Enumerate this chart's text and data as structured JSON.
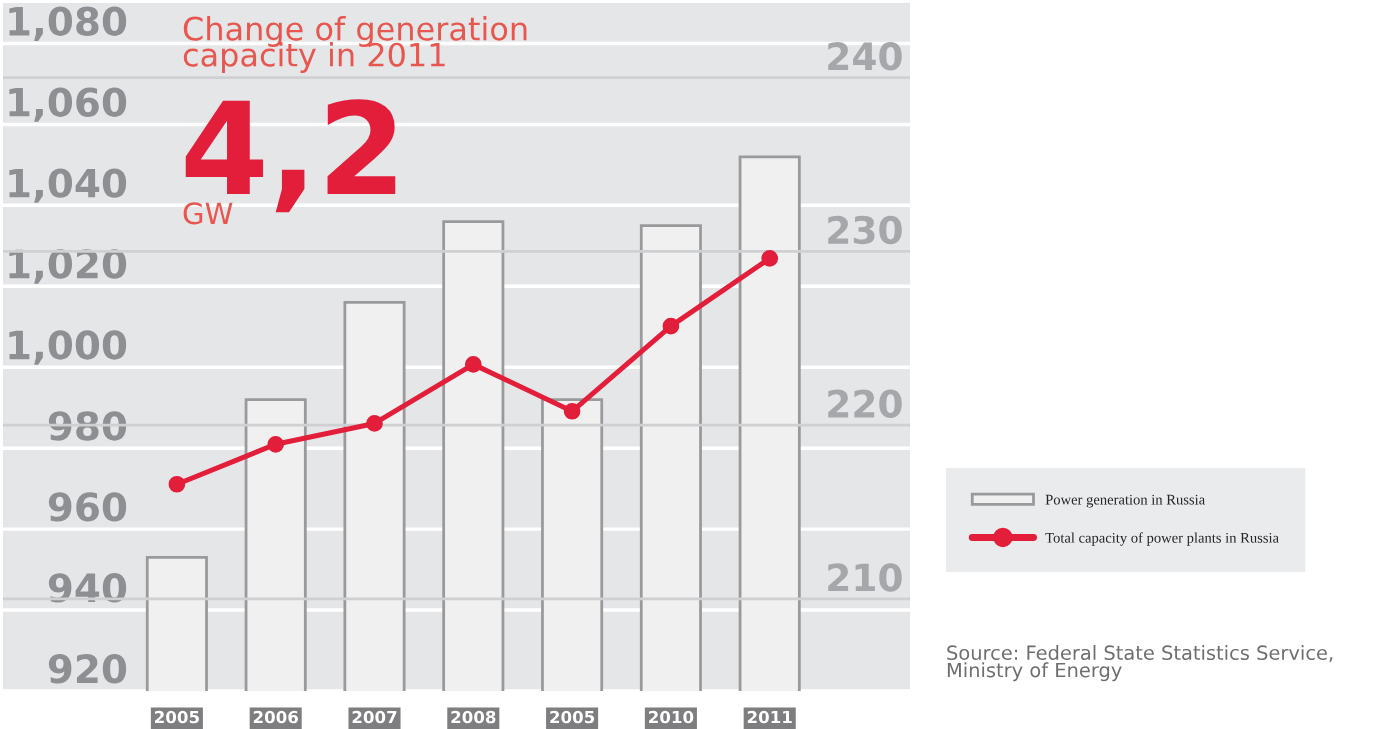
{
  "chart_data": {
    "type": "bar",
    "categories": [
      "2005",
      "2006",
      "2007",
      "2008",
      "2005",
      "2010",
      "2011"
    ],
    "series": [
      {
        "name": "Power generation in Russia",
        "color": "#f0f0f0",
        "values": [
          953,
          992,
          1016,
          1036,
          992,
          1035,
          1052
        ]
      },
      {
        "name": "Total capacity of power plants in Russia",
        "type": "line",
        "axis": "y2",
        "color": "#e31e3a",
        "values": [
          216.6,
          218.9,
          220.1,
          223.5,
          220.8,
          225.7,
          229.6
        ]
      }
    ],
    "ylim": [
      920,
      1090
    ],
    "yticks": [
      920,
      {
        "value": 940,
        "label": "940"
      },
      {
        "value": 960,
        "label": "960"
      },
      {
        "value": 980,
        "label": "980"
      },
      {
        "value": 1000,
        "label": "1,000"
      },
      {
        "value": 1020,
        "label": "1,020"
      },
      {
        "value": 1040,
        "label": "1,040"
      },
      {
        "value": 1060,
        "label": "1,060"
      },
      {
        "value": 1080,
        "label": "1,080"
      }
    ],
    "y2lim": [
      204.7,
      244.3
    ],
    "y2ticks": [
      210,
      220,
      230,
      240
    ],
    "grid": "y",
    "legend": "right",
    "marker": "circle",
    "line_style": "solid",
    "annotations": [
      "Change of generation\ncapacity in 2011",
      "4,2",
      "GW",
      "Source: Federal State Statistics Service,\nMinistry of Energy"
    ]
  }
}
